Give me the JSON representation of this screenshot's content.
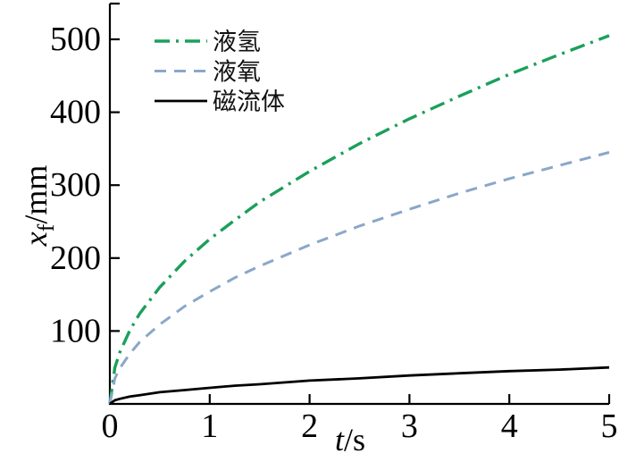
{
  "figure": {
    "background": "#ffffff",
    "axis_color": "#000000"
  },
  "chart_data": {
    "type": "line",
    "title": "",
    "xlabel": "t/s",
    "ylabel": "x_f/mm",
    "xlabel_parts": {
      "symbol": "t",
      "unit": "/s"
    },
    "ylabel_parts": {
      "symbol": "x",
      "subscript": "f",
      "unit": "/mm"
    },
    "xlim": [
      0,
      5
    ],
    "ylim": [
      0,
      548
    ],
    "x_ticks": [
      0,
      1,
      2,
      3,
      4,
      5
    ],
    "y_ticks": [
      100,
      200,
      300,
      400,
      500
    ],
    "grid": false,
    "legend_position": "top-left",
    "x": [
      0,
      0.05,
      0.1,
      0.2,
      0.3,
      0.5,
      0.75,
      1,
      1.25,
      1.5,
      2,
      2.5,
      3,
      3.5,
      4,
      4.5,
      5
    ],
    "series": [
      {
        "id": "liquid-hydrogen",
        "name": "液氢",
        "color": "#1aa05a",
        "line_style": "dash-dot",
        "values": [
          0,
          50,
          71,
          101,
          124,
          160,
          196,
          226,
          252,
          277,
          319,
          357,
          391,
          422,
          452,
          479,
          505
        ]
      },
      {
        "id": "liquid-oxygen",
        "name": "液氧",
        "color": "#8aa7c9",
        "line_style": "dashed",
        "values": [
          0,
          35,
          49,
          69,
          85,
          109,
          134,
          154,
          173,
          189,
          218,
          244,
          267,
          289,
          309,
          327,
          345
        ]
      },
      {
        "id": "ferrofluid",
        "name": "磁流体",
        "color": "#000000",
        "line_style": "solid",
        "values": [
          0,
          5,
          7,
          10,
          12,
          16,
          19,
          22,
          25,
          27,
          32,
          35,
          39,
          42,
          45,
          47,
          50
        ]
      }
    ]
  }
}
